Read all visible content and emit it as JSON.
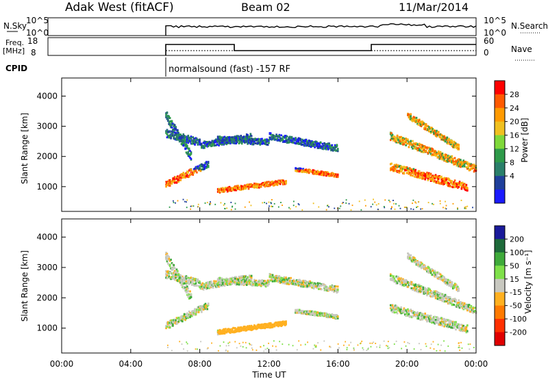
{
  "header": {
    "radar": "Adak West (fitACF)",
    "beam": "Beam 02",
    "date": "11/Mar/2014"
  },
  "noise_panel": {
    "left_label": "N.Sky",
    "right_label": "N.Search",
    "left_ticks": [
      "10^5",
      "10^0"
    ],
    "right_ticks": [
      "10^5",
      "10^0"
    ]
  },
  "freq_panel": {
    "left_label": "Freq.",
    "left_unit": "[MHz]",
    "right_label": "Nave",
    "left_ticks": [
      "18",
      "8"
    ],
    "right_ticks": [
      "60",
      "0"
    ]
  },
  "cpid": {
    "label": "CPID",
    "text": "normalsound (fast) -157 RF"
  },
  "chart_data": [
    {
      "type": "heatmap",
      "name": "power",
      "ylabel": "Slant Range [km]",
      "yticks": [
        1000,
        2000,
        3000,
        4000
      ],
      "ylim": [
        180,
        4600
      ],
      "xlim": [
        0,
        24
      ],
      "colorbar": {
        "label": "Power [dB]",
        "ticks": [
          "28",
          "24",
          "20",
          "16",
          "12",
          "8",
          "4"
        ],
        "colors": [
          "#ff0000",
          "#ff5a00",
          "#ff9a00",
          "#f0c020",
          "#7fd83a",
          "#2e9a4a",
          "#2a7f6a",
          "#1f3f9a",
          "#1a1aff"
        ]
      }
    },
    {
      "type": "heatmap",
      "name": "velocity",
      "ylabel": "Slant Range [km]",
      "yticks": [
        1000,
        2000,
        3000,
        4000
      ],
      "ylim": [
        180,
        4600
      ],
      "xlim": [
        0,
        24
      ],
      "colorbar": {
        "label": "Velocity [m s⁻¹]",
        "ticks": [
          "200",
          "100",
          "50",
          "15",
          "-15",
          "-50",
          "-100",
          "-200"
        ],
        "colors": [
          "#1a1a9a",
          "#1e6a3a",
          "#3faa3a",
          "#7fe04a",
          "#c8c8c0",
          "#ffb020",
          "#ff7a00",
          "#ff3000",
          "#e00000"
        ]
      }
    }
  ],
  "xaxis": {
    "label": "Time UT",
    "ticks": [
      "00:00",
      "04:00",
      "08:00",
      "12:00",
      "16:00",
      "20:00",
      "00:00"
    ]
  }
}
